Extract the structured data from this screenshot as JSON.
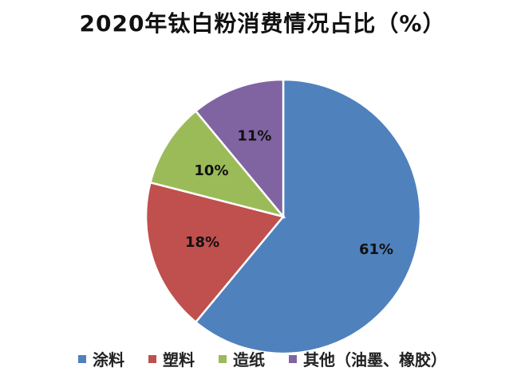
{
  "chart_data": {
    "type": "pie",
    "title": "2020年钛白粉消费情况占比（%）",
    "categories": [
      "涂料",
      "塑料",
      "造纸",
      "其他（油墨、橡胶）"
    ],
    "values": [
      61,
      18,
      10,
      11
    ],
    "labels": [
      "61%",
      "18%",
      "10%",
      "11%"
    ],
    "colors": [
      "#4F81BD",
      "#C0504D",
      "#9BBB59",
      "#8064A2"
    ],
    "start": "12 o'clock",
    "direction": "clockwise",
    "legend_position": "bottom"
  }
}
